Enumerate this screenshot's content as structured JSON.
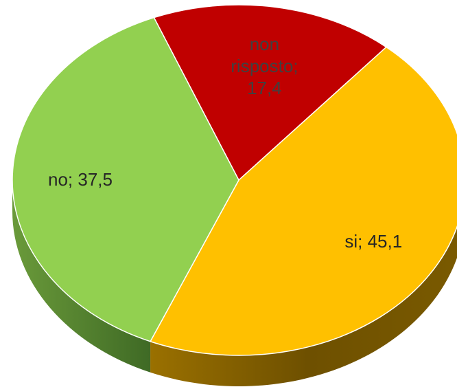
{
  "chart_data": {
    "type": "pie",
    "categories": [
      "non risposto",
      "si",
      "no"
    ],
    "values": [
      17.4,
      45.1,
      37.5
    ],
    "value_labels": [
      "non risposto; 17,4",
      "si; 45,1",
      "no; 37,5"
    ],
    "colors": [
      "#c00000",
      "#ffc000",
      "#92d050"
    ]
  }
}
